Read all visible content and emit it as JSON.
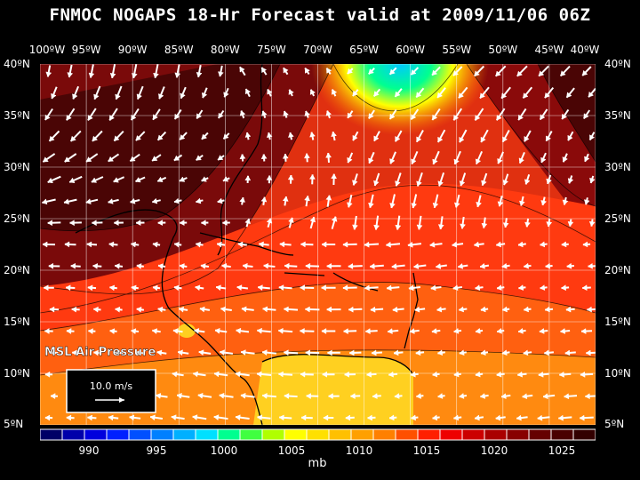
{
  "title": "FNMOC NOGAPS 18-Hr Forecast valid at 2009/11/06 06Z",
  "lon_labels": [
    "100ºW",
    "95ºW",
    "90ºW",
    "85ºW",
    "80ºW",
    "75ºW",
    "70ºW",
    "65ºW",
    "60ºW",
    "55ºW",
    "50ºW",
    "45ºW",
    "40ºW"
  ],
  "lat_labels": [
    "40ºN",
    "35ºN",
    "30ºN",
    "25ºN",
    "20ºN",
    "15ºN",
    "10ºN",
    "5ºN"
  ],
  "overlay_label": "MSL Air Pressure",
  "vector_key": "10.0 m/s",
  "legend": {
    "tick_labels": [
      "990",
      "995",
      "1000",
      "1005",
      "1010",
      "1015",
      "1020",
      "1025"
    ],
    "unit": "mb",
    "colors": [
      "#000066",
      "#0000aa",
      "#0000dd",
      "#0020ff",
      "#0050ff",
      "#0080ff",
      "#00b0ff",
      "#00e0ff",
      "#00ff90",
      "#40ff40",
      "#b0ff00",
      "#ffff00",
      "#ffe000",
      "#ffc000",
      "#ffa000",
      "#ff8000",
      "#ff5000",
      "#ff2000",
      "#ee0000",
      "#cc0000",
      "#aa0000",
      "#880000",
      "#660000",
      "#4a0000",
      "#330000"
    ]
  }
}
